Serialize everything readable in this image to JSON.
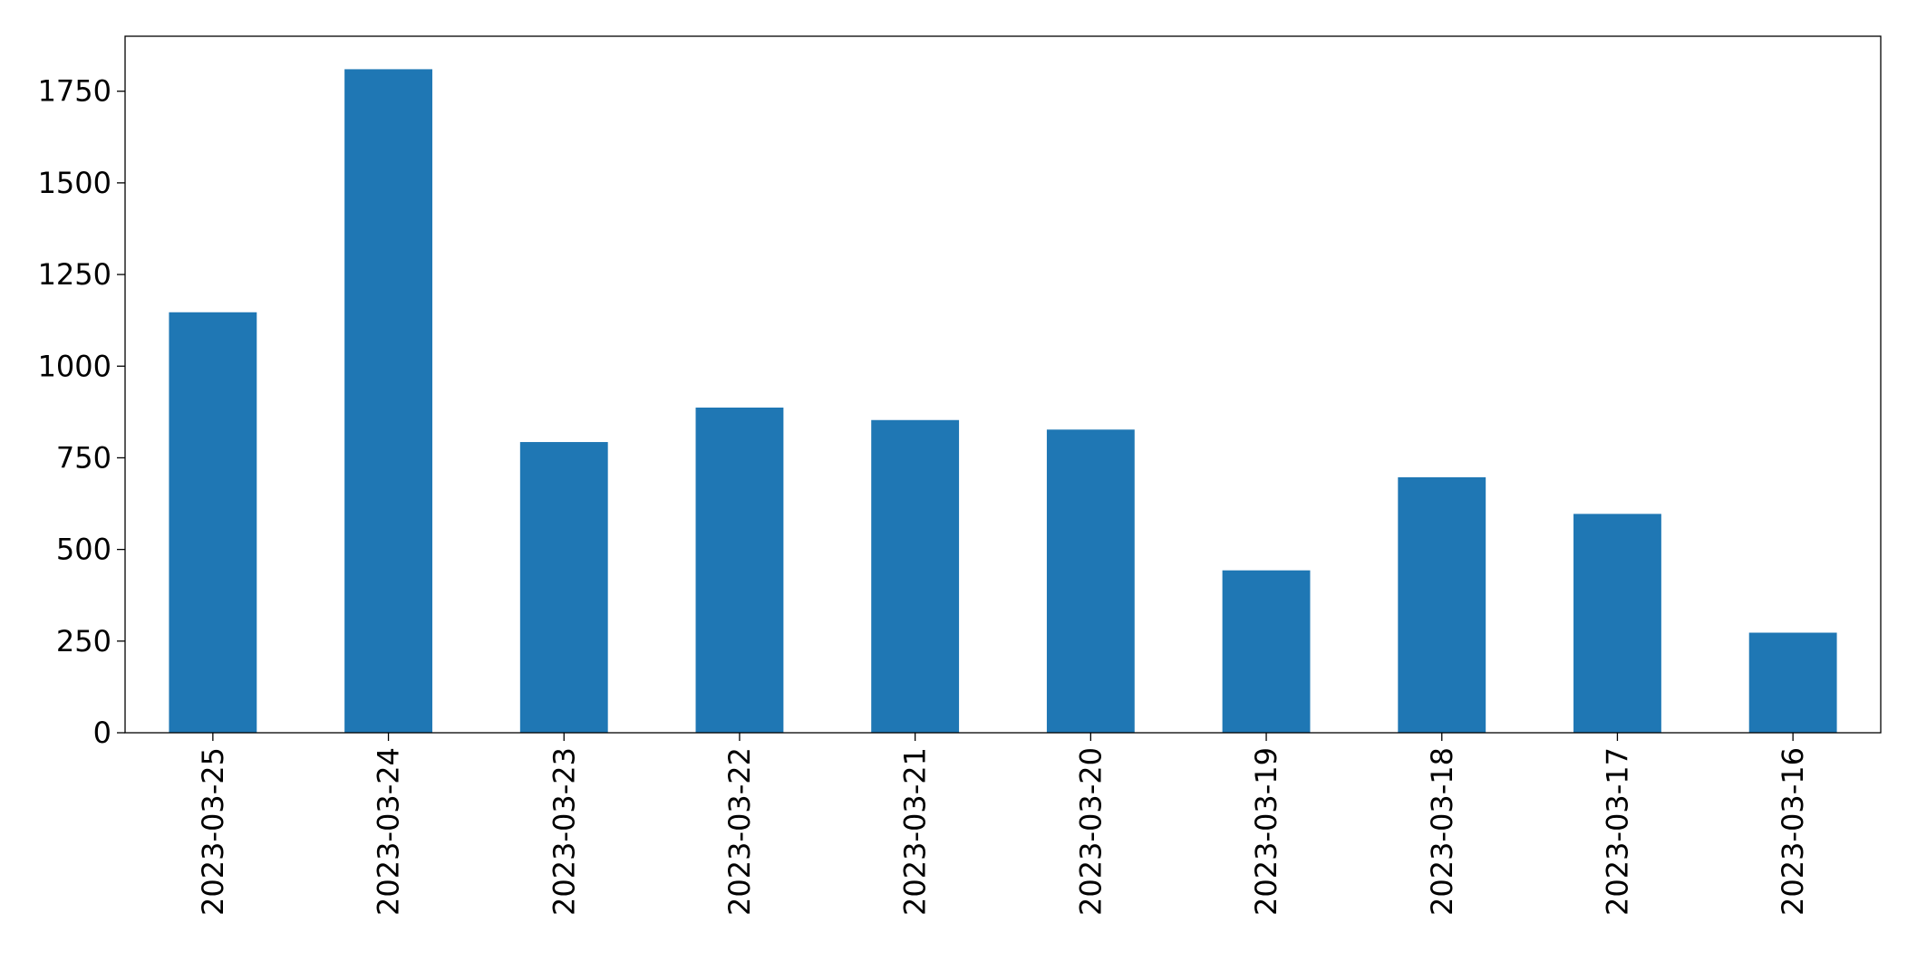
{
  "chart_data": {
    "type": "bar",
    "categories": [
      "2023-03-25",
      "2023-03-24",
      "2023-03-23",
      "2023-03-22",
      "2023-03-21",
      "2023-03-20",
      "2023-03-19",
      "2023-03-18",
      "2023-03-17",
      "2023-03-16"
    ],
    "values": [
      1147,
      1810,
      793,
      887,
      853,
      827,
      443,
      697,
      597,
      273
    ],
    "color": "#1f77b4",
    "ylim": [
      0,
      1900
    ],
    "yticks": [
      0,
      250,
      500,
      750,
      1000,
      1250,
      1500,
      1750
    ],
    "grid": false
  }
}
